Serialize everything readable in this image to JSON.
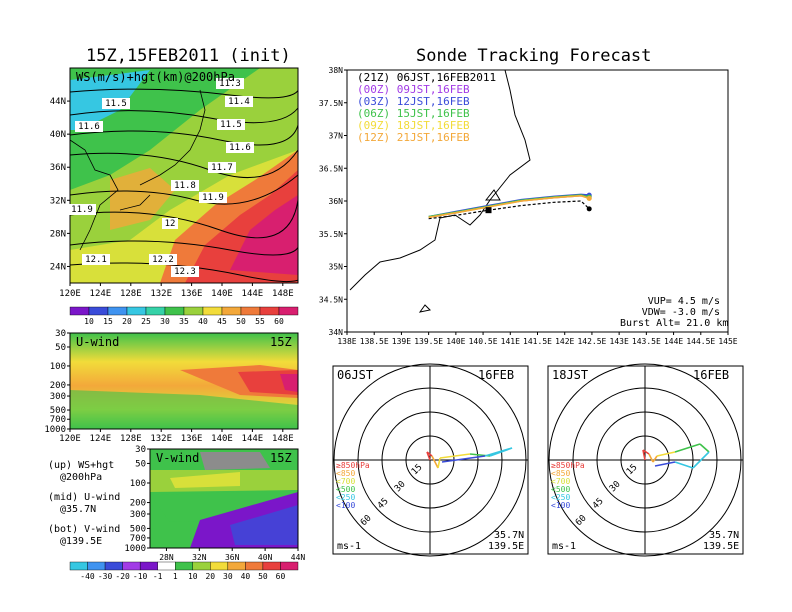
{
  "left_title": "15Z,15FEB2011 (init)",
  "right_title": "Sonde Tracking Forecast",
  "colors": {
    "deep_purple": "#7b16c9",
    "purple": "#a23be6",
    "blue": "#3a4cd9",
    "light_blue": "#3f93f0",
    "cyan": "#36c7e2",
    "teal": "#35d2a8",
    "green": "#3fc24b",
    "light_green": "#9ad13c",
    "yellow_green": "#d8e03a",
    "yellow": "#f2dc3a",
    "orange": "#f3a83a",
    "dark_orange": "#ef7a3a",
    "red": "#e8403d",
    "magenta": "#d81f6f",
    "gray": "#8c8c8c"
  },
  "chart_data": [
    {
      "type": "heatmap",
      "name": "ws-hgt-map",
      "title": "WS(m/s)+hgt(km)@200hPa",
      "x_ticks": [
        "120E",
        "124E",
        "128E",
        "132E",
        "136E",
        "140E",
        "144E",
        "148E"
      ],
      "y_ticks": [
        "24N",
        "28N",
        "32N",
        "36N",
        "40N",
        "44N"
      ],
      "xlim": [
        120,
        150
      ],
      "ylim": [
        22,
        48
      ],
      "contour_labels": [
        "11.3",
        "11.4",
        "11.5",
        "11.5",
        "11.6",
        "11.6",
        "11.7",
        "11.8",
        "11.9",
        "11.9",
        "12",
        "12.1",
        "12.2",
        "12.3"
      ],
      "colorbar_labels": [
        "10",
        "15",
        "20",
        "25",
        "30",
        "35",
        "40",
        "45",
        "50",
        "55",
        "60"
      ]
    },
    {
      "type": "heatmap",
      "name": "u-wind-section",
      "title": "U-wind",
      "time_label": "15Z",
      "x_ticks": [
        "120E",
        "124E",
        "128E",
        "132E",
        "136E",
        "140E",
        "144E",
        "148E"
      ],
      "y_ticks": [
        "30",
        "50",
        "100",
        "200",
        "300",
        "500",
        "700",
        "1000"
      ],
      "xlim": [
        120,
        150
      ],
      "ylim": [
        1000,
        30
      ]
    },
    {
      "type": "heatmap",
      "name": "v-wind-section",
      "title": "V-wind",
      "time_label": "15Z",
      "x_ticks": [
        "28N",
        "32N",
        "36N",
        "40N",
        "44N"
      ],
      "y_ticks": [
        "30",
        "50",
        "100",
        "200",
        "300",
        "500",
        "700",
        "1000"
      ],
      "xlim": [
        26,
        44
      ],
      "ylim": [
        1000,
        30
      ],
      "colorbar_labels": [
        "-40",
        "-30",
        "-20",
        "-10",
        "-1",
        "1",
        "10",
        "20",
        "30",
        "40",
        "50",
        "60"
      ]
    },
    {
      "type": "line",
      "name": "sonde-tracks",
      "x_ticks": [
        "138E",
        "138.5E",
        "139E",
        "139.5E",
        "140E",
        "140.5E",
        "141E",
        "141.5E",
        "142E",
        "142.5E",
        "143E",
        "143.5E",
        "144E",
        "144.5E",
        "145E"
      ],
      "y_ticks": [
        "34N",
        "34.5N",
        "35N",
        "35.5N",
        "36N",
        "36.5N",
        "37N",
        "37.5N",
        "38N"
      ],
      "xlim": [
        138,
        145
      ],
      "ylim": [
        34,
        38
      ],
      "series": [
        {
          "name": "(21Z)  06JST,16FEB2011",
          "color": "#000000",
          "x": [
            139.5,
            140,
            140.6,
            141.2,
            141.8,
            142.3,
            142.45
          ],
          "y": [
            35.73,
            35.78,
            35.86,
            35.93,
            35.98,
            36.0,
            35.88
          ]
        },
        {
          "name": "(00Z)  09JST,16FEB",
          "color": "#a23be6",
          "x": [
            139.5,
            140,
            140.6,
            141.2,
            141.8,
            142.3,
            142.45
          ],
          "y": [
            35.75,
            35.82,
            35.92,
            36.0,
            36.05,
            36.08,
            36.07
          ]
        },
        {
          "name": "(03Z)  12JST,16FEB",
          "color": "#3a4cd9",
          "x": [
            139.5,
            140,
            140.6,
            141.2,
            141.8,
            142.3,
            142.45
          ],
          "y": [
            35.76,
            35.84,
            35.93,
            36.02,
            36.07,
            36.1,
            36.09
          ]
        },
        {
          "name": "(06Z)  15JST,16FEB",
          "color": "#3fc24b",
          "x": [
            139.5,
            140,
            140.6,
            141.2,
            141.8,
            142.3,
            142.45
          ],
          "y": [
            35.76,
            35.83,
            35.92,
            36.01,
            36.06,
            36.09,
            36.06
          ]
        },
        {
          "name": "(09Z)  18JST,16FEB",
          "color": "#f2dc3a",
          "x": [
            139.5,
            140,
            140.6,
            141.2,
            141.8,
            142.3,
            142.45
          ],
          "y": [
            35.75,
            35.82,
            35.91,
            36.0,
            36.05,
            36.08,
            36.04
          ]
        },
        {
          "name": "(12Z)  21JST,16FEB",
          "color": "#f3a83a",
          "x": [
            139.5,
            140,
            140.6,
            141.2,
            141.8,
            142.3,
            142.45
          ],
          "y": [
            35.75,
            35.82,
            35.91,
            36.0,
            36.05,
            36.08,
            36.04
          ]
        }
      ],
      "annotations": [
        "VUP= 4.5 m/s",
        "VDW= -3.0 m/s",
        "Burst Alt= 21.0 km"
      ]
    },
    {
      "type": "scatter",
      "name": "hodograph-06jst",
      "time_label": "06JST",
      "date_label": "16FEB",
      "ring_labels": [
        "15",
        "30",
        "45",
        "60"
      ],
      "pressure_legend": [
        "≥850hPa",
        "<850",
        "<700",
        "<500",
        "<250",
        "<100"
      ],
      "location": [
        "35.7N",
        "139.5E"
      ],
      "unit": "ms-1"
    },
    {
      "type": "scatter",
      "name": "hodograph-18jst",
      "time_label": "18JST",
      "date_label": "16FEB",
      "ring_labels": [
        "15",
        "30",
        "45",
        "60"
      ],
      "pressure_legend": [
        "≥850hPa",
        "<850",
        "<700",
        "<500",
        "<250",
        "<100"
      ],
      "location": [
        "35.7N",
        "139.5E"
      ],
      "unit": "ms-1"
    }
  ],
  "notes": [
    {
      "label": "(up) WS+hgt",
      "detail": "@200hPa"
    },
    {
      "label": "(mid) U-wind",
      "detail": "@35.7N"
    },
    {
      "label": "(bot) V-wind",
      "detail": "@139.5E"
    }
  ]
}
